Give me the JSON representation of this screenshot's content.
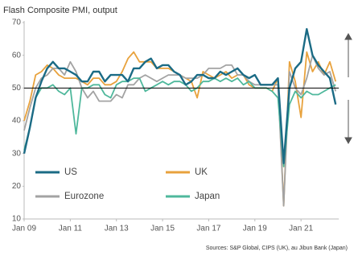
{
  "chart_data": {
    "type": "line",
    "title": "Flash Composite PMI, output",
    "source": "Sources: S&P Global, CIPS (UK), au Jibun Bank (Japan)",
    "categories": [
      "Jan 09",
      null,
      null,
      null,
      null,
      null,
      null,
      null,
      "Jan 11",
      null,
      null,
      null,
      null,
      null,
      null,
      null,
      "Jan 13",
      null,
      null,
      null,
      null,
      null,
      null,
      null,
      "Jan 15",
      null,
      null,
      null,
      null,
      null,
      null,
      null,
      "Jan 17",
      null,
      null,
      null,
      null,
      null,
      null,
      null,
      "Jan 19",
      null,
      null,
      null,
      null,
      null,
      null,
      null,
      "Jan 21",
      null,
      null,
      null,
      null,
      null,
      null
    ],
    "series": [
      {
        "name": "US",
        "color": "#1b6b85",
        "values": [
          30,
          38,
          47,
          52,
          56,
          58,
          56,
          56,
          55,
          54,
          52,
          52,
          55,
          55,
          52,
          54,
          54,
          54,
          52,
          56,
          56,
          58,
          59,
          56,
          57,
          57,
          55,
          54,
          51,
          52,
          54,
          54,
          53,
          53,
          55,
          54,
          55,
          56,
          54,
          53,
          54,
          51,
          51,
          51,
          53,
          27,
          50,
          56,
          58,
          68,
          60,
          57,
          55,
          53,
          45
        ]
      },
      {
        "name": "UK",
        "color": "#e8a23d",
        "values": [
          40,
          46,
          54,
          55,
          57,
          56,
          54,
          53,
          53,
          53,
          52,
          51,
          53,
          53,
          51,
          51,
          52,
          55,
          59,
          61,
          58,
          58,
          58,
          56,
          56,
          56,
          55,
          54,
          53,
          52,
          47,
          55,
          54,
          53,
          54,
          55,
          53,
          54,
          54,
          51,
          50,
          50,
          50,
          49,
          53,
          14,
          58,
          52,
          41,
          61,
          55,
          58,
          54,
          58,
          52
        ]
      },
      {
        "name": "Eurozone",
        "color": "#a3a3a3",
        "values": [
          37,
          44,
          50,
          53,
          54,
          56,
          56,
          54,
          58,
          55,
          50,
          47,
          49,
          46,
          46,
          46,
          48,
          47,
          51,
          51,
          53,
          54,
          53,
          52,
          53,
          54,
          54,
          54,
          53,
          53,
          53,
          54,
          56,
          56,
          56,
          57,
          57,
          54,
          54,
          52,
          51,
          51,
          51,
          51,
          51,
          14,
          55,
          50,
          48,
          53,
          60,
          56,
          54,
          55,
          49
        ]
      },
      {
        "name": "Japan",
        "color": "#4fb89c",
        "values": [
          31,
          38,
          47,
          50,
          50,
          51,
          49,
          48,
          50,
          36,
          50,
          50,
          51,
          51,
          48,
          47,
          51,
          52,
          52,
          53,
          53,
          49,
          50,
          51,
          52,
          51,
          52,
          52,
          51,
          49,
          50,
          52,
          52,
          53,
          52,
          53,
          52,
          53,
          51,
          52,
          50,
          50,
          50,
          49,
          47,
          26,
          45,
          49,
          47,
          49,
          48,
          48,
          49,
          50,
          51
        ]
      }
    ],
    "ylim": [
      10,
      70
    ],
    "yticks": [
      10,
      20,
      30,
      40,
      50,
      60,
      70
    ],
    "reference_line": 50,
    "legend": "lower-left"
  }
}
